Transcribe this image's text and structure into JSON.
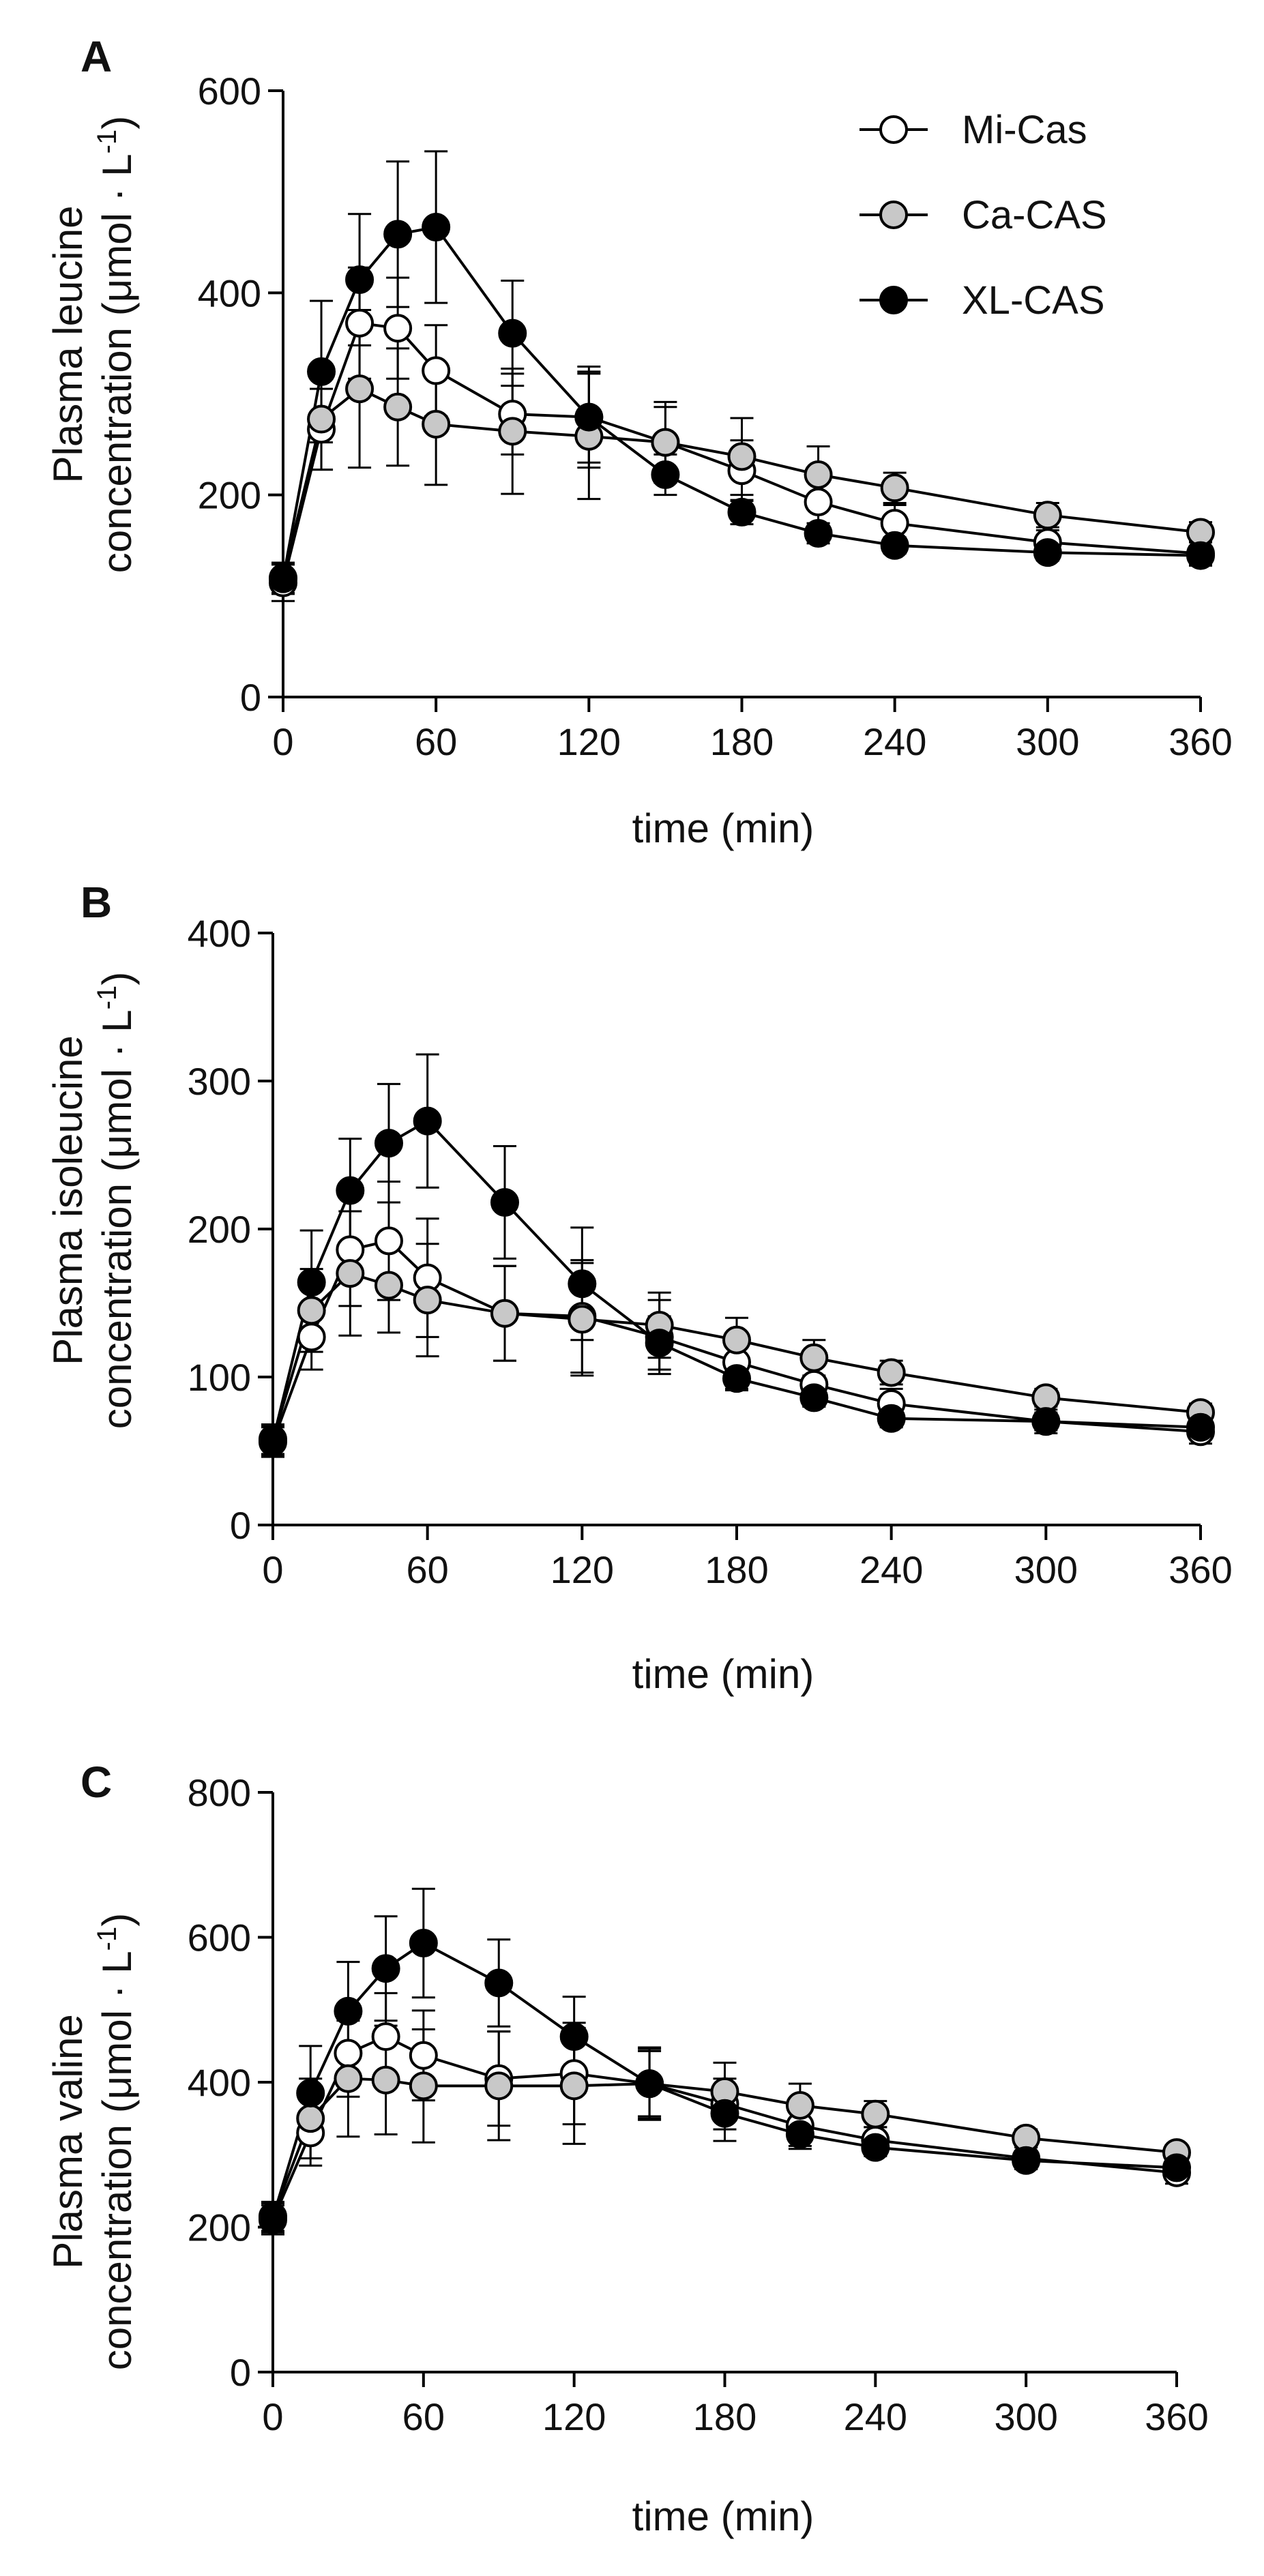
{
  "series_styles": [
    {
      "fill": "#ffffff",
      "stroke": "#000000"
    },
    {
      "fill": "#c8c8c8",
      "stroke": "#000000"
    },
    {
      "fill": "#000000",
      "stroke": "#000000"
    }
  ],
  "chart_data": [
    {
      "panel_label": "A",
      "type": "line",
      "title": "",
      "xlabel": "time (min)",
      "ylabel_line1": "Plasma leucine",
      "ylabel_line2_prefix": "concentration (μmol · L",
      "ylabel_line2_sup": "-1",
      "ylabel_line2_suffix": ")",
      "xlim": [
        0,
        360
      ],
      "ylim": [
        0,
        600
      ],
      "xticks": [
        0,
        60,
        120,
        180,
        240,
        300,
        360
      ],
      "yticks": [
        0,
        200,
        400,
        600
      ],
      "legend": {
        "placement": "top-right",
        "entries": [
          "Mi-Cas",
          "Ca-CAS",
          "XL-CAS"
        ]
      },
      "series": [
        {
          "name": "Mi-Cas",
          "x": [
            0,
            15,
            30,
            45,
            60,
            90,
            120,
            150,
            180,
            210,
            240,
            300,
            360
          ],
          "y": [
            113,
            265,
            370,
            365,
            323,
            280,
            277,
            252,
            224,
            193,
            172,
            153,
            142
          ],
          "err": [
            18,
            40,
            55,
            50,
            45,
            40,
            45,
            35,
            30,
            25,
            18,
            12,
            12
          ]
        },
        {
          "name": "Ca-CAS",
          "x": [
            0,
            15,
            30,
            45,
            60,
            90,
            120,
            150,
            180,
            210,
            240,
            300,
            360
          ],
          "y": [
            118,
            275,
            305,
            287,
            270,
            263,
            258,
            252,
            238,
            220,
            207,
            180,
            163
          ],
          "err": [
            15,
            50,
            78,
            58,
            60,
            62,
            62,
            40,
            38,
            28,
            15,
            12,
            10
          ]
        },
        {
          "name": "XL-CAS",
          "x": [
            0,
            15,
            30,
            45,
            60,
            90,
            120,
            150,
            180,
            210,
            240,
            300,
            360
          ],
          "y": [
            117,
            322,
            413,
            458,
            465,
            360,
            277,
            220,
            183,
            162,
            150,
            143,
            140
          ],
          "err": [
            15,
            70,
            65,
            72,
            75,
            52,
            50,
            20,
            12,
            10,
            8,
            8,
            8
          ]
        }
      ]
    },
    {
      "panel_label": "B",
      "type": "line",
      "title": "",
      "xlabel": "time (min)",
      "ylabel_line1": "Plasma isoleucine",
      "ylabel_line2_prefix": "concentration (μmol · L",
      "ylabel_line2_sup": "-1",
      "ylabel_line2_suffix": ")",
      "xlim": [
        0,
        360
      ],
      "ylim": [
        0,
        400
      ],
      "xticks": [
        0,
        60,
        120,
        180,
        240,
        300,
        360
      ],
      "yticks": [
        0,
        100,
        200,
        300,
        400
      ],
      "legend": null,
      "series": [
        {
          "name": "Mi-Cas",
          "x": [
            0,
            15,
            30,
            45,
            60,
            90,
            120,
            150,
            180,
            210,
            240,
            300,
            360
          ],
          "y": [
            56,
            127,
            186,
            192,
            167,
            143,
            141,
            127,
            110,
            95,
            82,
            70,
            63
          ],
          "err": [
            10,
            22,
            38,
            40,
            40,
            32,
            38,
            25,
            18,
            15,
            10,
            8,
            8
          ]
        },
        {
          "name": "Ca-CAS",
          "x": [
            0,
            15,
            30,
            45,
            60,
            90,
            120,
            150,
            180,
            210,
            240,
            300,
            360
          ],
          "y": [
            58,
            145,
            170,
            162,
            152,
            143,
            139,
            135,
            125,
            113,
            103,
            86,
            76
          ],
          "err": [
            10,
            28,
            42,
            32,
            38,
            32,
            38,
            22,
            15,
            12,
            8,
            6,
            6
          ]
        },
        {
          "name": "XL-CAS",
          "x": [
            0,
            15,
            30,
            45,
            60,
            90,
            120,
            150,
            180,
            210,
            240,
            300,
            360
          ],
          "y": [
            57,
            164,
            226,
            258,
            273,
            218,
            163,
            123,
            99,
            86,
            72,
            70,
            66
          ],
          "err": [
            10,
            35,
            35,
            40,
            45,
            38,
            38,
            18,
            8,
            6,
            6,
            6,
            5
          ]
        }
      ]
    },
    {
      "panel_label": "C",
      "type": "line",
      "title": "",
      "xlabel": "time (min)",
      "ylabel_line1": "Plasma valine",
      "ylabel_line2_prefix": "concentration (μmol · L",
      "ylabel_line2_sup": "-1",
      "ylabel_line2_suffix": ")",
      "xlim": [
        0,
        360
      ],
      "ylim": [
        0,
        800
      ],
      "xticks": [
        0,
        60,
        120,
        180,
        240,
        300,
        360
      ],
      "yticks": [
        0,
        200,
        400,
        600,
        800
      ],
      "legend": null,
      "series": [
        {
          "name": "Mi-Cas",
          "x": [
            0,
            15,
            30,
            45,
            60,
            90,
            120,
            150,
            180,
            210,
            240,
            300,
            360
          ],
          "y": [
            210,
            330,
            440,
            463,
            437,
            405,
            412,
            398,
            370,
            340,
            320,
            295,
            275
          ],
          "err": [
            20,
            45,
            60,
            60,
            62,
            65,
            70,
            50,
            35,
            28,
            18,
            15,
            15
          ]
        },
        {
          "name": "Ca-CAS",
          "x": [
            0,
            15,
            30,
            45,
            60,
            90,
            120,
            150,
            180,
            210,
            240,
            300,
            360
          ],
          "y": [
            215,
            350,
            405,
            403,
            395,
            395,
            395,
            398,
            387,
            368,
            356,
            323,
            303
          ],
          "err": [
            20,
            55,
            80,
            75,
            78,
            75,
            80,
            48,
            40,
            30,
            18,
            12,
            10
          ]
        },
        {
          "name": "XL-CAS",
          "x": [
            0,
            15,
            30,
            45,
            60,
            90,
            120,
            150,
            180,
            210,
            240,
            300,
            360
          ],
          "y": [
            213,
            385,
            498,
            557,
            592,
            537,
            463,
            398,
            357,
            328,
            310,
            292,
            282
          ],
          "err": [
            20,
            65,
            68,
            72,
            75,
            60,
            55,
            45,
            38,
            20,
            12,
            12,
            12
          ]
        }
      ]
    }
  ]
}
